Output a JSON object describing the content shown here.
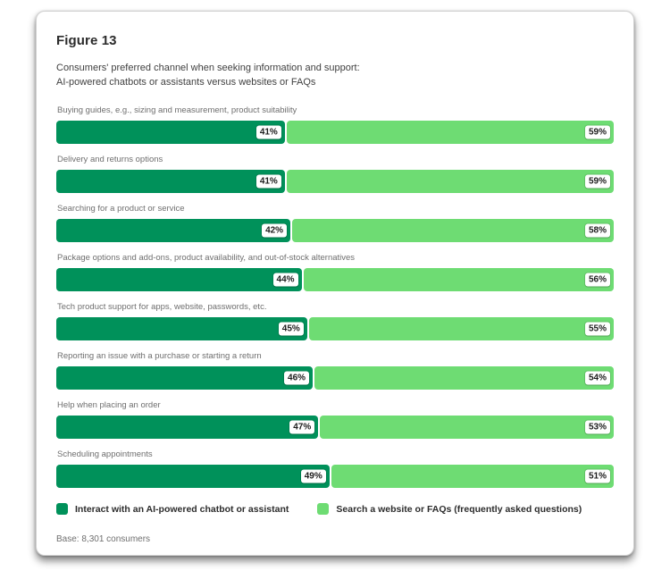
{
  "card": {
    "title": "Figure 13",
    "subtitle_line1": "Consumers' preferred channel when seeking information and support:",
    "subtitle_line2": "AI-powered chatbots or assistants versus websites or FAQs",
    "base_note": "Base: 8,301 consumers"
  },
  "colors": {
    "chatbot_segment": "#00915a",
    "website_segment": "#6edc73",
    "value_pill_bg": "#ffffff",
    "value_pill_text": "#1c1c1c",
    "category_label_text": "#6f6f6f"
  },
  "legend": [
    {
      "label": "Interact with an AI-powered chatbot or assistant",
      "color": "#00915a"
    },
    {
      "label": "Search a website or FAQs (frequently asked questions)",
      "color": "#6edc73"
    }
  ],
  "chart_data": {
    "type": "bar",
    "orientation": "horizontal-stacked",
    "title": "Figure 13",
    "subtitle": "Consumers' preferred channel when seeking information and support: AI-powered chatbots or assistants versus websites or FAQs",
    "categories": [
      "Buying guides, e.g., sizing and measurement, product suitability",
      "Delivery and returns options",
      "Searching for a product or service",
      "Package options and add-ons, product availability, and out-of-stock alternatives",
      "Tech product support for apps, website, passwords, etc.",
      "Reporting an issue with a purchase or starting a return",
      "Help when placing an order",
      "Scheduling appointments"
    ],
    "series": [
      {
        "name": "Interact with an AI-powered chatbot or assistant",
        "values": [
          41,
          41,
          42,
          44,
          45,
          46,
          47,
          49
        ]
      },
      {
        "name": "Search a website or FAQs (frequently asked questions)",
        "values": [
          59,
          59,
          58,
          56,
          55,
          54,
          53,
          51
        ]
      }
    ],
    "value_suffix": "%",
    "xlim": [
      0,
      100
    ],
    "grid": false,
    "legend_position": "bottom"
  }
}
